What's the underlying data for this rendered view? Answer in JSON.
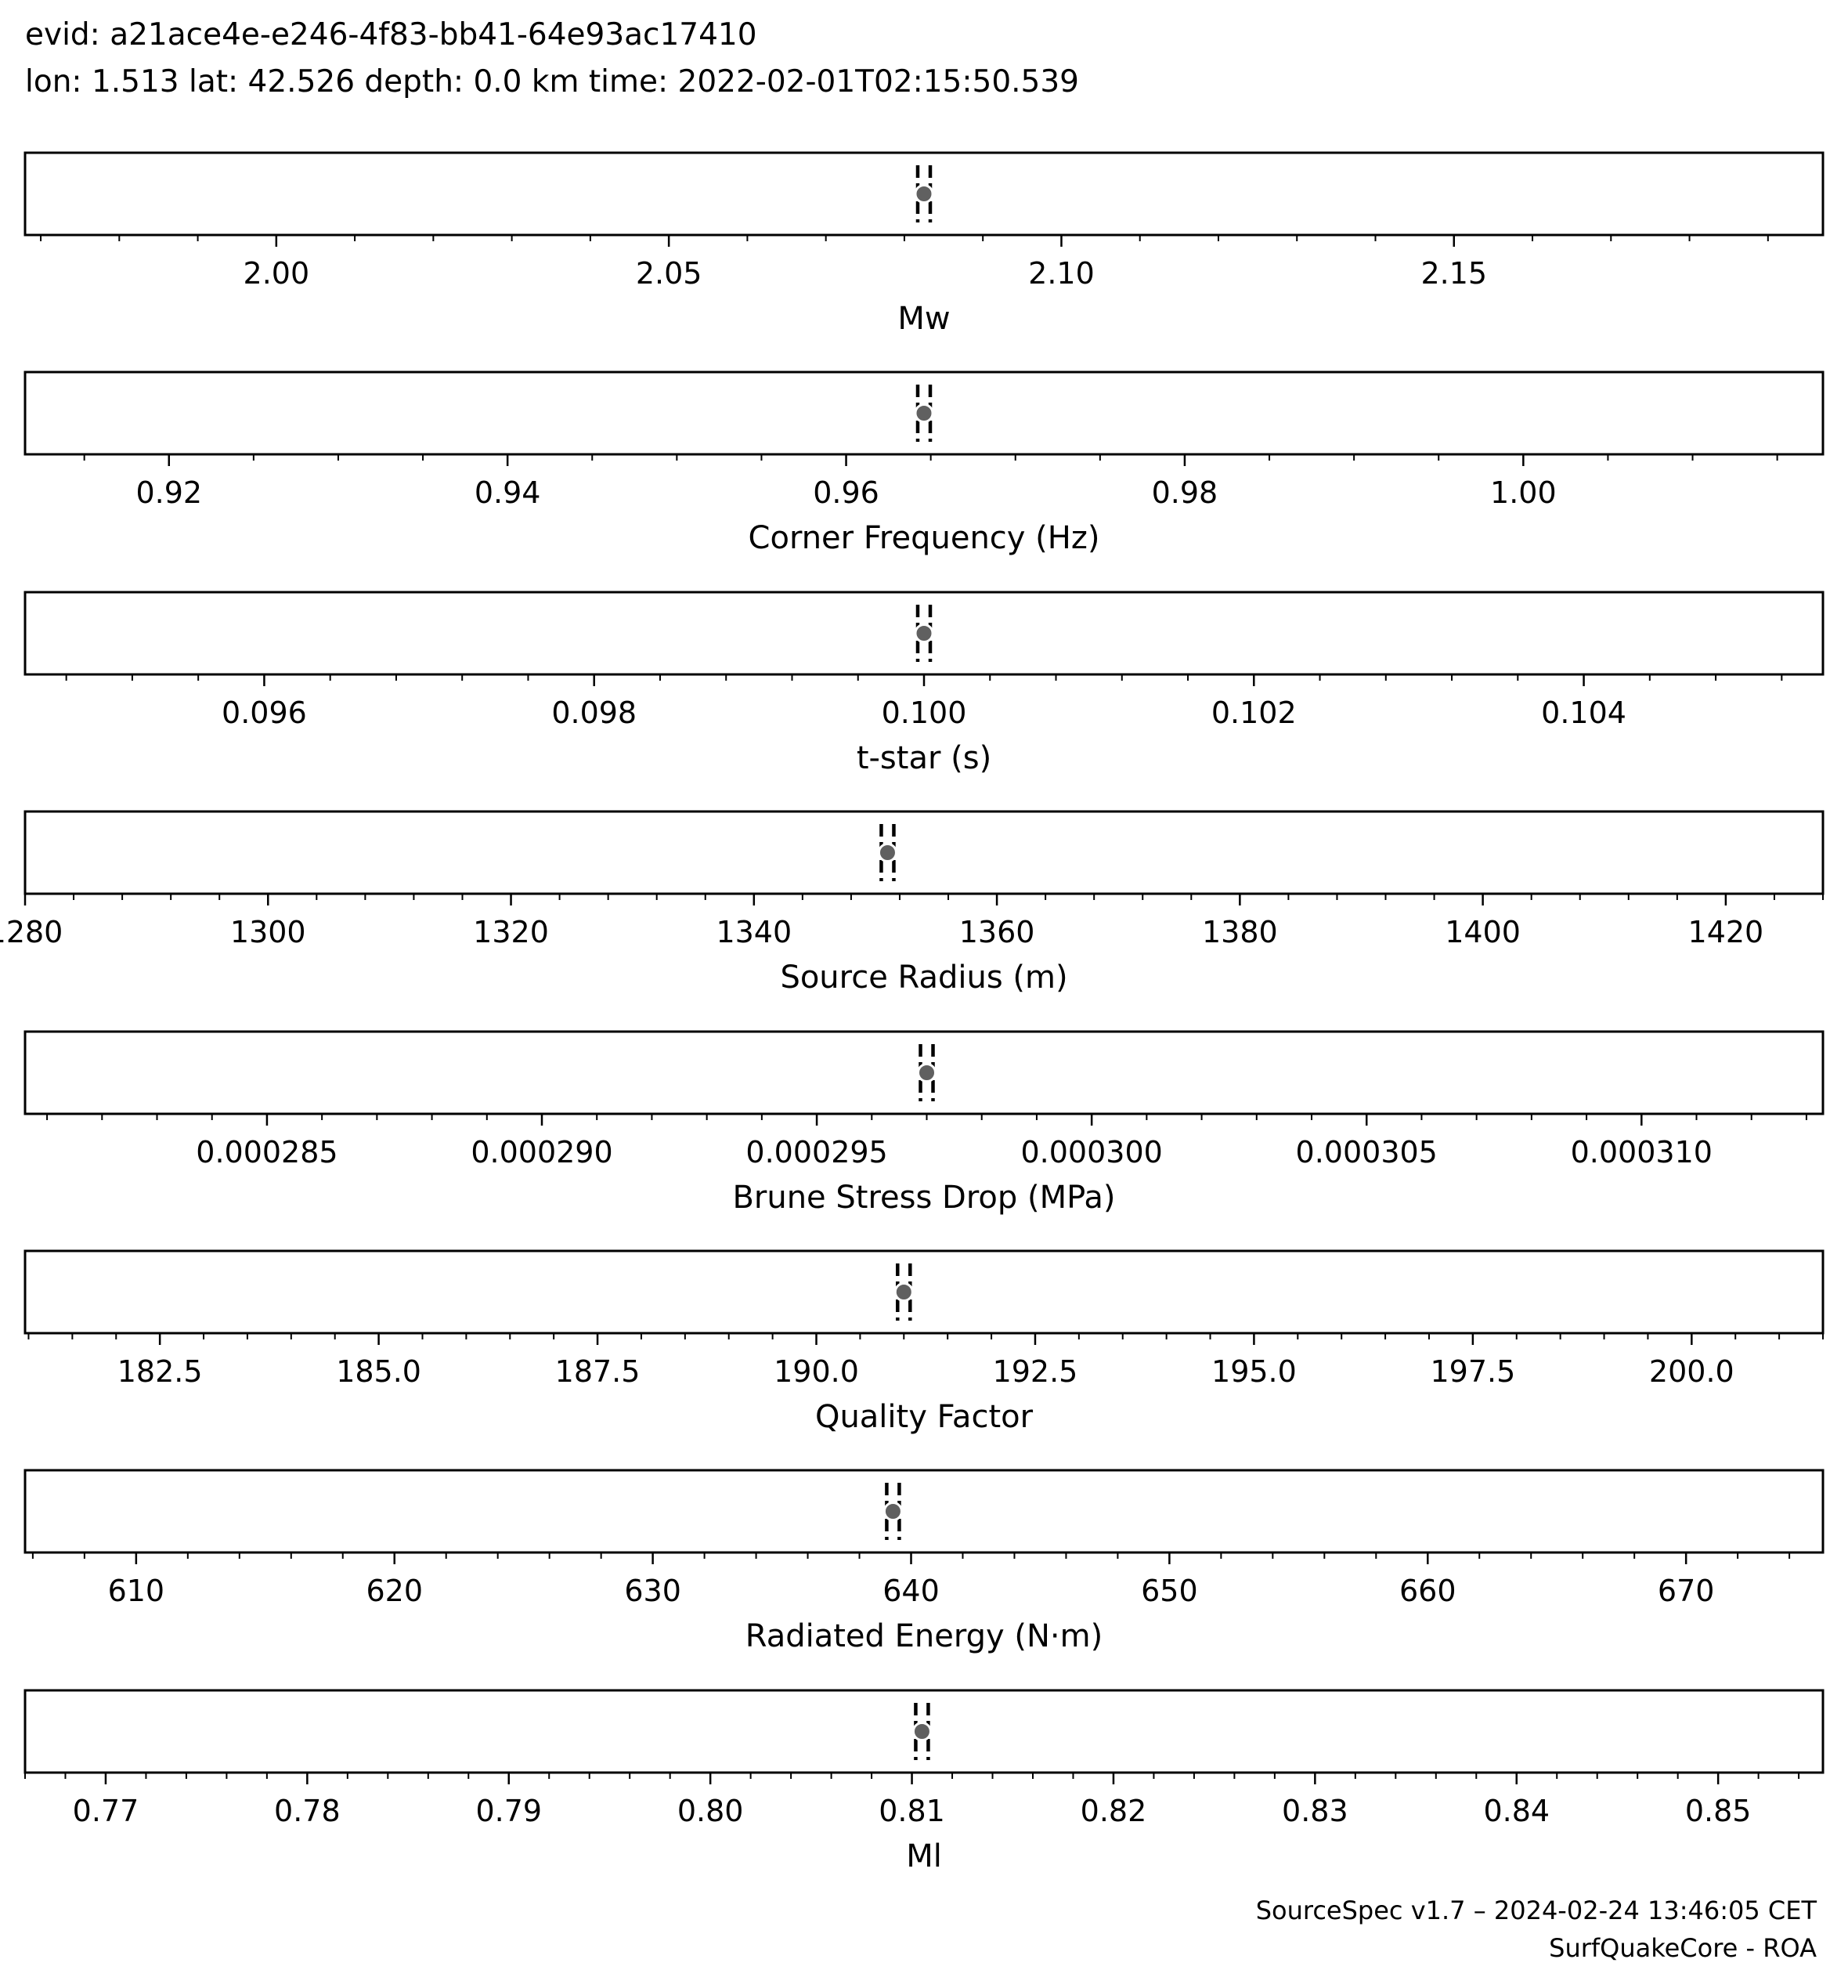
{
  "header": {
    "evid_line": "evid: a21ace4e-e246-4f83-bb41-64e93ac17410",
    "location_line": "lon: 1.513 lat: 42.526 depth: 0.0 km time: 2022-02-01T02:15:50.539"
  },
  "footer": {
    "version_line": "SourceSpec v1.7 – 2024-02-24 13:46:05 CET",
    "author_line": "SurfQuakeCore - ROA"
  },
  "style": {
    "marker_color": "#606060",
    "line_color": "#000000",
    "marker_edge_color": "#ffffff"
  },
  "chart_data": [
    {
      "type": "scatter",
      "xlabel": "Mw",
      "xlim": [
        1.968,
        2.197
      ],
      "value": 2.0825,
      "ticks": [
        2.0,
        2.05,
        2.1,
        2.15
      ],
      "tick_labels": [
        "2.00",
        "2.05",
        "2.10",
        "2.15"
      ],
      "minor_step": 0.01
    },
    {
      "type": "scatter",
      "xlabel": "Corner Frequency (Hz)",
      "xlim": [
        0.9115,
        1.0177
      ],
      "value": 0.9646,
      "ticks": [
        0.92,
        0.94,
        0.96,
        0.98,
        1.0
      ],
      "tick_labels": [
        "0.92",
        "0.94",
        "0.96",
        "0.98",
        "1.00"
      ],
      "minor_step": 0.005
    },
    {
      "type": "scatter",
      "xlabel": "t-star (s)",
      "xlim": [
        0.09455,
        0.10545
      ],
      "value": 0.1,
      "ticks": [
        0.096,
        0.098,
        0.1,
        0.102,
        0.104
      ],
      "tick_labels": [
        "0.096",
        "0.098",
        "0.100",
        "0.102",
        "0.104"
      ],
      "minor_step": 0.0004
    },
    {
      "type": "scatter",
      "xlabel": "Source Radius (m)",
      "xlim": [
        1280,
        1428
      ],
      "value": 1351,
      "ticks": [
        1280,
        1300,
        1320,
        1340,
        1360,
        1380,
        1400,
        1420
      ],
      "tick_labels": [
        "1280",
        "1300",
        "1320",
        "1340",
        "1360",
        "1380",
        "1400",
        "1420"
      ],
      "minor_step": 4
    },
    {
      "type": "scatter",
      "xlabel": "Brune Stress Drop (MPa)",
      "xlim": [
        0.0002806,
        0.0003133
      ],
      "value": 0.000297,
      "ticks": [
        0.000285,
        0.00029,
        0.000295,
        0.0003,
        0.000305,
        0.00031
      ],
      "tick_labels": [
        "0.000285",
        "0.000290",
        "0.000295",
        "0.000300",
        "0.000305",
        "0.000310"
      ],
      "minor_step": 1e-06
    },
    {
      "type": "scatter",
      "xlabel": "Quality Factor",
      "xlim": [
        180.96,
        201.5
      ],
      "value": 191.0,
      "ticks": [
        182.5,
        185.0,
        187.5,
        190.0,
        192.5,
        195.0,
        197.5,
        200.0
      ],
      "tick_labels": [
        "182.5",
        "185.0",
        "187.5",
        "190.0",
        "192.5",
        "195.0",
        "197.5",
        "200.0"
      ],
      "minor_step": 0.5
    },
    {
      "type": "scatter",
      "xlabel": "Radiated Energy (N·m)",
      "xlim": [
        605.7,
        675.3
      ],
      "value": 639.3,
      "ticks": [
        610,
        620,
        630,
        640,
        650,
        660,
        670
      ],
      "tick_labels": [
        "610",
        "620",
        "630",
        "640",
        "650",
        "660",
        "670"
      ],
      "minor_step": 2
    },
    {
      "type": "scatter",
      "xlabel": "Ml",
      "xlim": [
        0.766,
        0.8552
      ],
      "value": 0.8105,
      "ticks": [
        0.77,
        0.78,
        0.79,
        0.8,
        0.81,
        0.82,
        0.83,
        0.84,
        0.85
      ],
      "tick_labels": [
        "0.77",
        "0.78",
        "0.79",
        "0.80",
        "0.81",
        "0.82",
        "0.83",
        "0.84",
        "0.85"
      ],
      "minor_step": 0.002
    }
  ]
}
